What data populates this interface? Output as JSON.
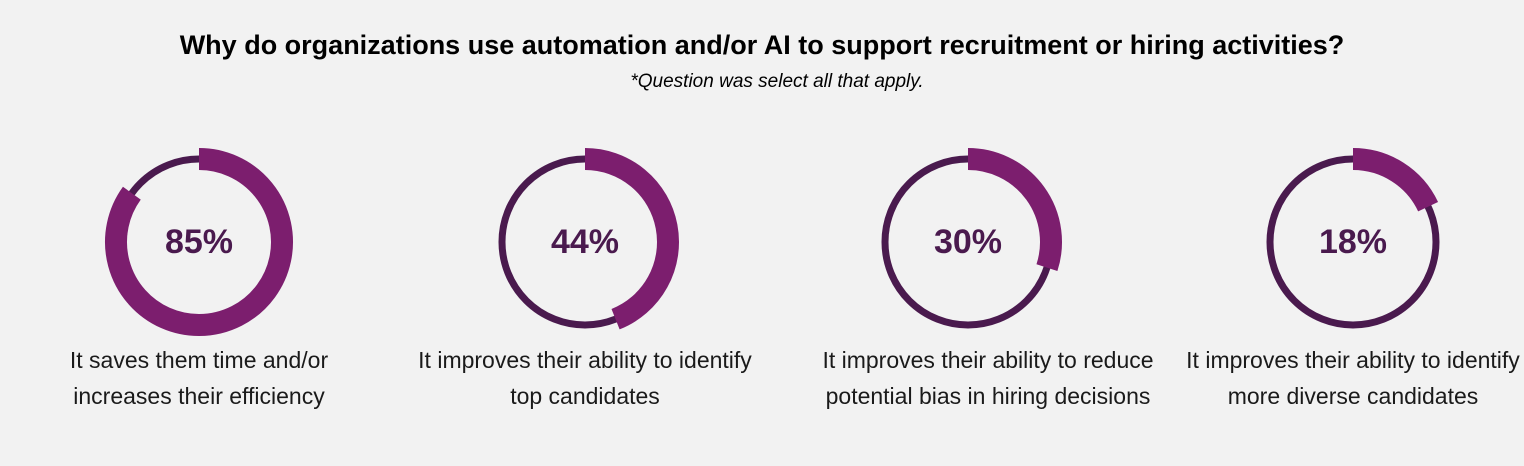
{
  "header": {
    "title": "Why do organizations use automation and/or AI to support recruitment or hiring activities?",
    "subtitle": "*Question was select all that apply."
  },
  "colors": {
    "fill": "#7c1e6e",
    "track": "#4a1a4e",
    "background": "#f2f2f2"
  },
  "chart_data": {
    "type": "pie",
    "title": "Why do organizations use automation and/or AI to support recruitment or hiring activities?",
    "subtitle": "*Question was select all that apply.",
    "items": [
      {
        "value": 85,
        "value_label": "85%",
        "label": "It saves them time and/or increases their efficiency"
      },
      {
        "value": 44,
        "value_label": "44%",
        "label": "It improves their ability to identify top candidates"
      },
      {
        "value": 30,
        "value_label": "30%",
        "label": "It improves their ability to reduce potential bias in hiring decisions"
      },
      {
        "value": 18,
        "value_label": "18%",
        "label": "It improves their ability to identify more diverse candidates"
      }
    ]
  }
}
